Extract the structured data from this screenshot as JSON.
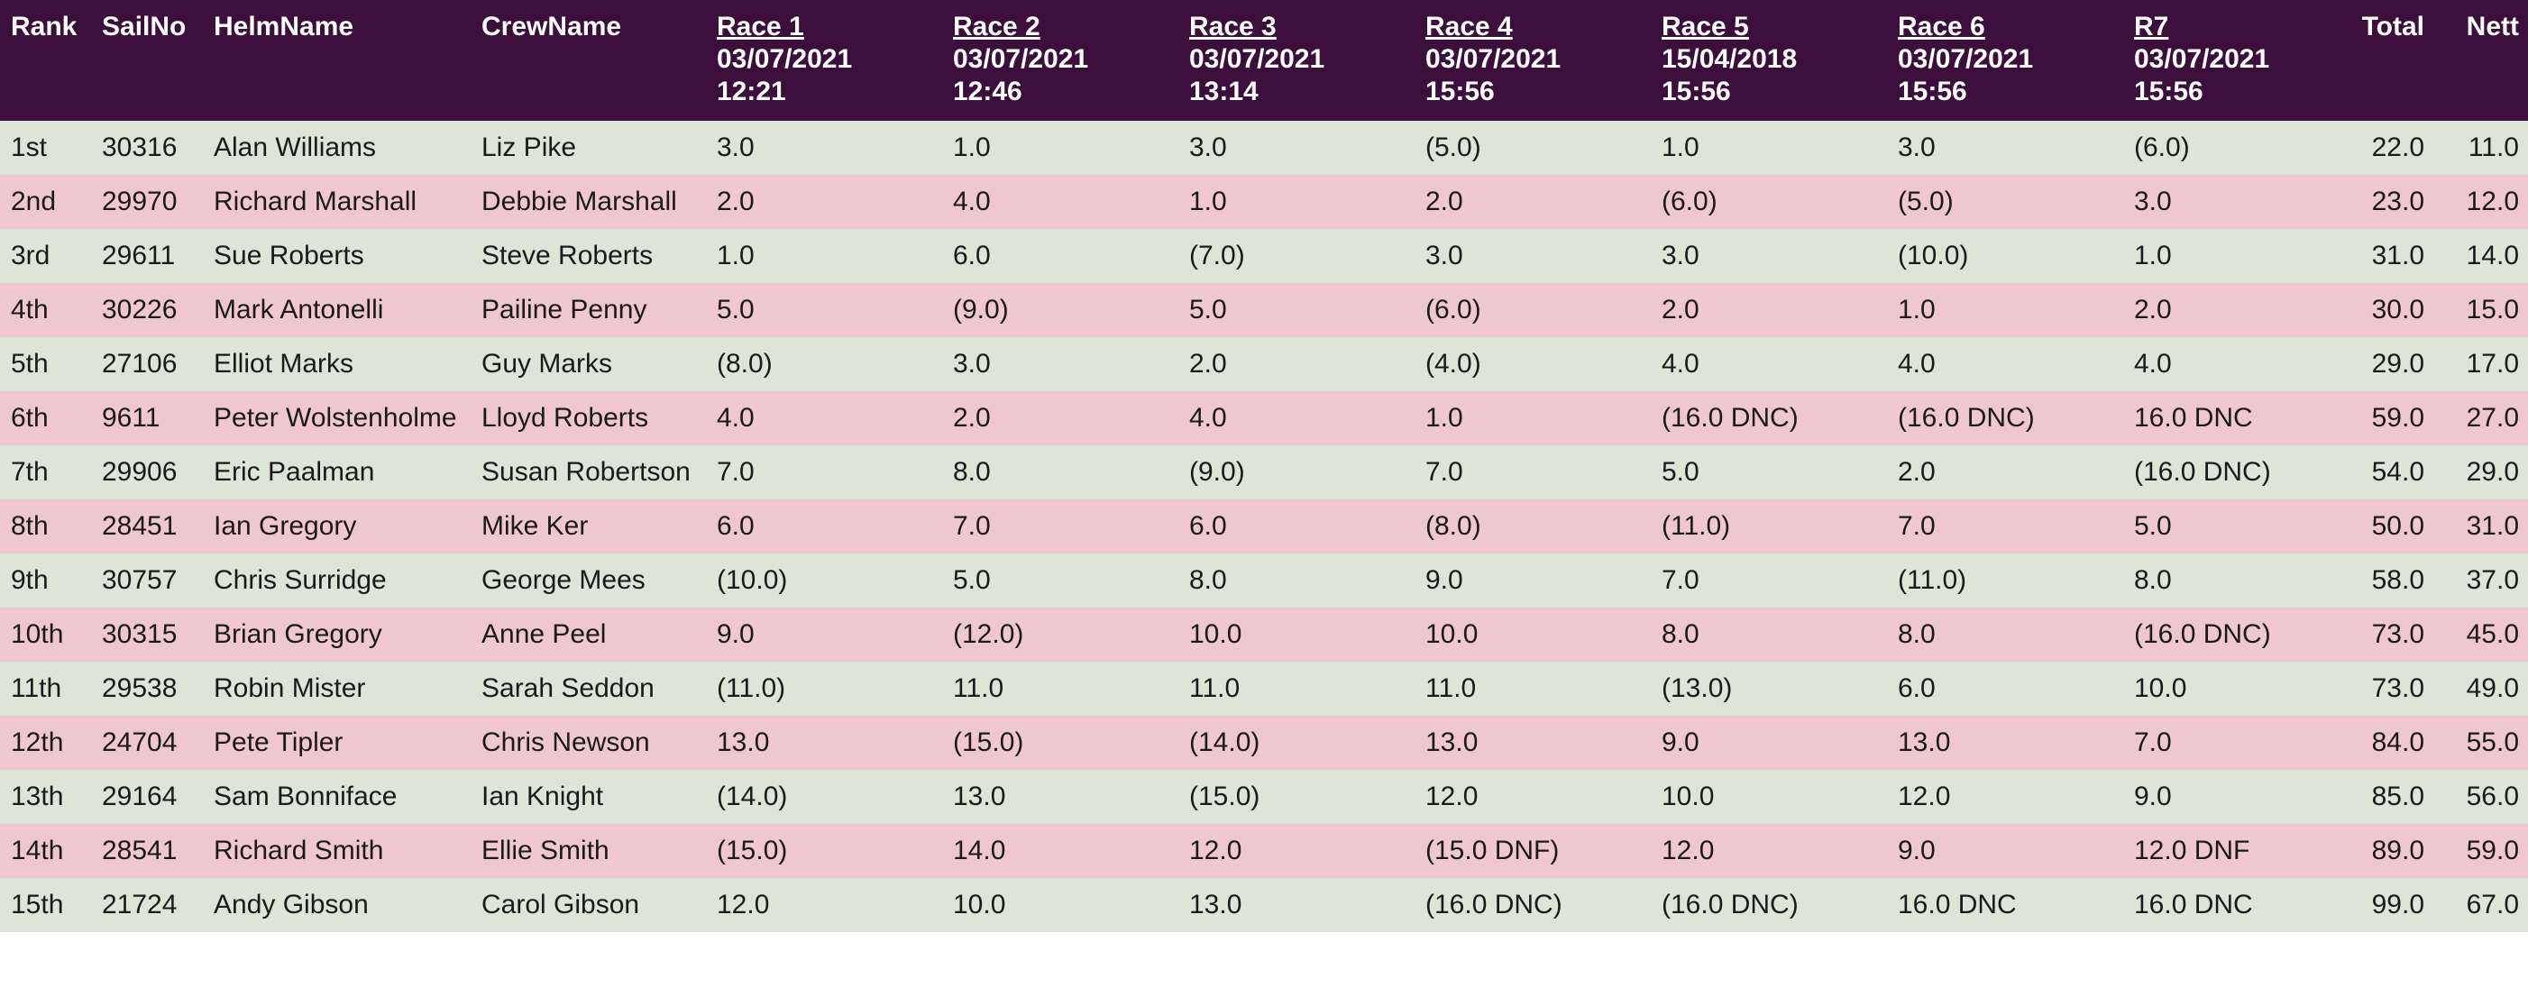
{
  "columns": {
    "rank": "Rank",
    "sailno": "SailNo",
    "helm": "HelmName",
    "crew": "CrewName",
    "total": "Total",
    "nett": "Nett"
  },
  "races": [
    {
      "title": "Race 1",
      "date": "03/07/2021",
      "time": "12:21"
    },
    {
      "title": "Race 2",
      "date": "03/07/2021",
      "time": "12:46"
    },
    {
      "title": "Race 3",
      "date": "03/07/2021",
      "time": "13:14"
    },
    {
      "title": "Race 4",
      "date": "03/07/2021",
      "time": "15:56"
    },
    {
      "title": "Race 5",
      "date": "15/04/2018",
      "time": "15:56"
    },
    {
      "title": "Race 6",
      "date": "03/07/2021",
      "time": "15:56"
    },
    {
      "title": "R7",
      "date": "03/07/2021",
      "time": "15:56"
    }
  ],
  "colors": {
    "header_bg": "#3b0e3c",
    "row_odd": "#dbe6d7",
    "row_even": "#efc7d0"
  },
  "rows": [
    {
      "rank": "1st",
      "sailno": "30316",
      "helm": "Alan Williams",
      "crew": "Liz Pike",
      "scores": [
        "3.0",
        "1.0",
        "3.0",
        "(5.0)",
        "1.0",
        "3.0",
        "(6.0)"
      ],
      "total": "22.0",
      "nett": "11.0"
    },
    {
      "rank": "2nd",
      "sailno": "29970",
      "helm": "Richard Marshall",
      "crew": "Debbie Marshall",
      "scores": [
        "2.0",
        "4.0",
        "1.0",
        "2.0",
        "(6.0)",
        "(5.0)",
        "3.0"
      ],
      "total": "23.0",
      "nett": "12.0"
    },
    {
      "rank": "3rd",
      "sailno": "29611",
      "helm": "Sue Roberts",
      "crew": "Steve Roberts",
      "scores": [
        "1.0",
        "6.0",
        "(7.0)",
        "3.0",
        "3.0",
        "(10.0)",
        "1.0"
      ],
      "total": "31.0",
      "nett": "14.0"
    },
    {
      "rank": "4th",
      "sailno": "30226",
      "helm": "Mark Antonelli",
      "crew": "Pailine Penny",
      "scores": [
        "5.0",
        "(9.0)",
        "5.0",
        "(6.0)",
        "2.0",
        "1.0",
        "2.0"
      ],
      "total": "30.0",
      "nett": "15.0"
    },
    {
      "rank": "5th",
      "sailno": "27106",
      "helm": "Elliot Marks",
      "crew": "Guy Marks",
      "scores": [
        "(8.0)",
        "3.0",
        "2.0",
        "(4.0)",
        "4.0",
        "4.0",
        "4.0"
      ],
      "total": "29.0",
      "nett": "17.0"
    },
    {
      "rank": "6th",
      "sailno": "9611",
      "helm": "Peter Wolstenholme",
      "crew": "Lloyd Roberts",
      "scores": [
        "4.0",
        "2.0",
        "4.0",
        "1.0",
        "(16.0 DNC)",
        "(16.0 DNC)",
        "16.0 DNC"
      ],
      "total": "59.0",
      "nett": "27.0"
    },
    {
      "rank": "7th",
      "sailno": "29906",
      "helm": "Eric Paalman",
      "crew": "Susan Robertson",
      "scores": [
        "7.0",
        "8.0",
        "(9.0)",
        "7.0",
        "5.0",
        "2.0",
        "(16.0 DNC)"
      ],
      "total": "54.0",
      "nett": "29.0"
    },
    {
      "rank": "8th",
      "sailno": "28451",
      "helm": "Ian Gregory",
      "crew": "Mike Ker",
      "scores": [
        "6.0",
        "7.0",
        "6.0",
        "(8.0)",
        "(11.0)",
        "7.0",
        "5.0"
      ],
      "total": "50.0",
      "nett": "31.0"
    },
    {
      "rank": "9th",
      "sailno": "30757",
      "helm": "Chris Surridge",
      "crew": "George Mees",
      "scores": [
        "(10.0)",
        "5.0",
        "8.0",
        "9.0",
        "7.0",
        "(11.0)",
        "8.0"
      ],
      "total": "58.0",
      "nett": "37.0"
    },
    {
      "rank": "10th",
      "sailno": "30315",
      "helm": "Brian Gregory",
      "crew": "Anne Peel",
      "scores": [
        "9.0",
        "(12.0)",
        "10.0",
        "10.0",
        "8.0",
        "8.0",
        "(16.0 DNC)"
      ],
      "total": "73.0",
      "nett": "45.0"
    },
    {
      "rank": "11th",
      "sailno": "29538",
      "helm": "Robin Mister",
      "crew": "Sarah Seddon",
      "scores": [
        "(11.0)",
        "11.0",
        "11.0",
        "11.0",
        "(13.0)",
        "6.0",
        "10.0"
      ],
      "total": "73.0",
      "nett": "49.0"
    },
    {
      "rank": "12th",
      "sailno": "24704",
      "helm": "Pete Tipler",
      "crew": "Chris Newson",
      "scores": [
        "13.0",
        "(15.0)",
        "(14.0)",
        "13.0",
        "9.0",
        "13.0",
        "7.0"
      ],
      "total": "84.0",
      "nett": "55.0"
    },
    {
      "rank": "13th",
      "sailno": "29164",
      "helm": "Sam Bonniface",
      "crew": "Ian Knight",
      "scores": [
        "(14.0)",
        "13.0",
        "(15.0)",
        "12.0",
        "10.0",
        "12.0",
        "9.0"
      ],
      "total": "85.0",
      "nett": "56.0"
    },
    {
      "rank": "14th",
      "sailno": "28541",
      "helm": "Richard Smith",
      "crew": "Ellie Smith",
      "scores": [
        "(15.0)",
        "14.0",
        "12.0",
        "(15.0 DNF)",
        "12.0",
        "9.0",
        "12.0 DNF"
      ],
      "total": "89.0",
      "nett": "59.0"
    },
    {
      "rank": "15th",
      "sailno": "21724",
      "helm": "Andy Gibson",
      "crew": "Carol Gibson",
      "scores": [
        "12.0",
        "10.0",
        "13.0",
        "(16.0 DNC)",
        "(16.0 DNC)",
        "16.0 DNC",
        "16.0 DNC"
      ],
      "total": "99.0",
      "nett": "67.0"
    }
  ]
}
